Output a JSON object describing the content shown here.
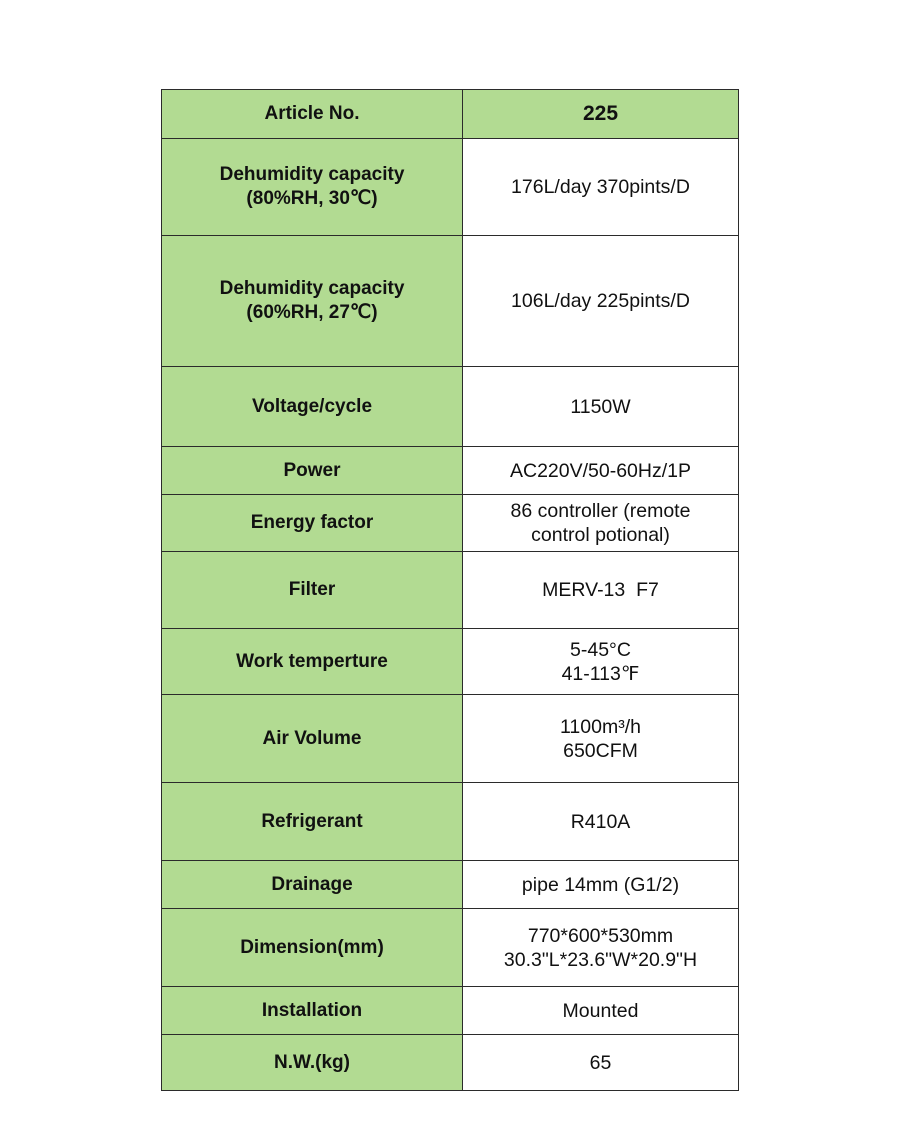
{
  "header": {
    "label": "Article No.",
    "value": "225"
  },
  "rows": [
    {
      "label": [
        "Dehumidity capacity",
        "(80%RH, 30℃)"
      ],
      "value": [
        "176L/day 370pints/D"
      ]
    },
    {
      "label": [
        "Dehumidity capacity",
        "(60%RH, 27℃)"
      ],
      "value": [
        "106L/day 225pints/D"
      ]
    },
    {
      "label": [
        "Voltage/cycle"
      ],
      "value": [
        "1150W"
      ]
    },
    {
      "label": [
        "Power"
      ],
      "value": [
        "AC220V/50-60Hz/1P"
      ]
    },
    {
      "label": [
        "Energy factor"
      ],
      "value": [
        "86 controller (remote",
        "control potional)"
      ]
    },
    {
      "label": [
        "Filter"
      ],
      "value": [
        "MERV-13  F7"
      ]
    },
    {
      "label": [
        "Work temperture"
      ],
      "value": [
        "5-45°C",
        "41-113℉"
      ]
    },
    {
      "label": [
        "Air Volume"
      ],
      "value": [
        "1100m³/h",
        "650CFM"
      ]
    },
    {
      "label": [
        "Refrigerant"
      ],
      "value": [
        "R410A"
      ]
    },
    {
      "label": [
        "Drainage"
      ],
      "value": [
        "pipe 14mm (G1/2)"
      ]
    },
    {
      "label": [
        "Dimension(mm)"
      ],
      "value": [
        "770*600*530mm",
        "30.3\"L*23.6\"W*20.9\"H"
      ]
    },
    {
      "label": [
        "Installation"
      ],
      "value": [
        "Mounted"
      ]
    },
    {
      "label": [
        "N.W.(kg)"
      ],
      "value": [
        "65"
      ]
    }
  ],
  "colors": {
    "label_background": "#b2db92",
    "value_background": "#ffffff",
    "border": "#2b2b2b"
  }
}
